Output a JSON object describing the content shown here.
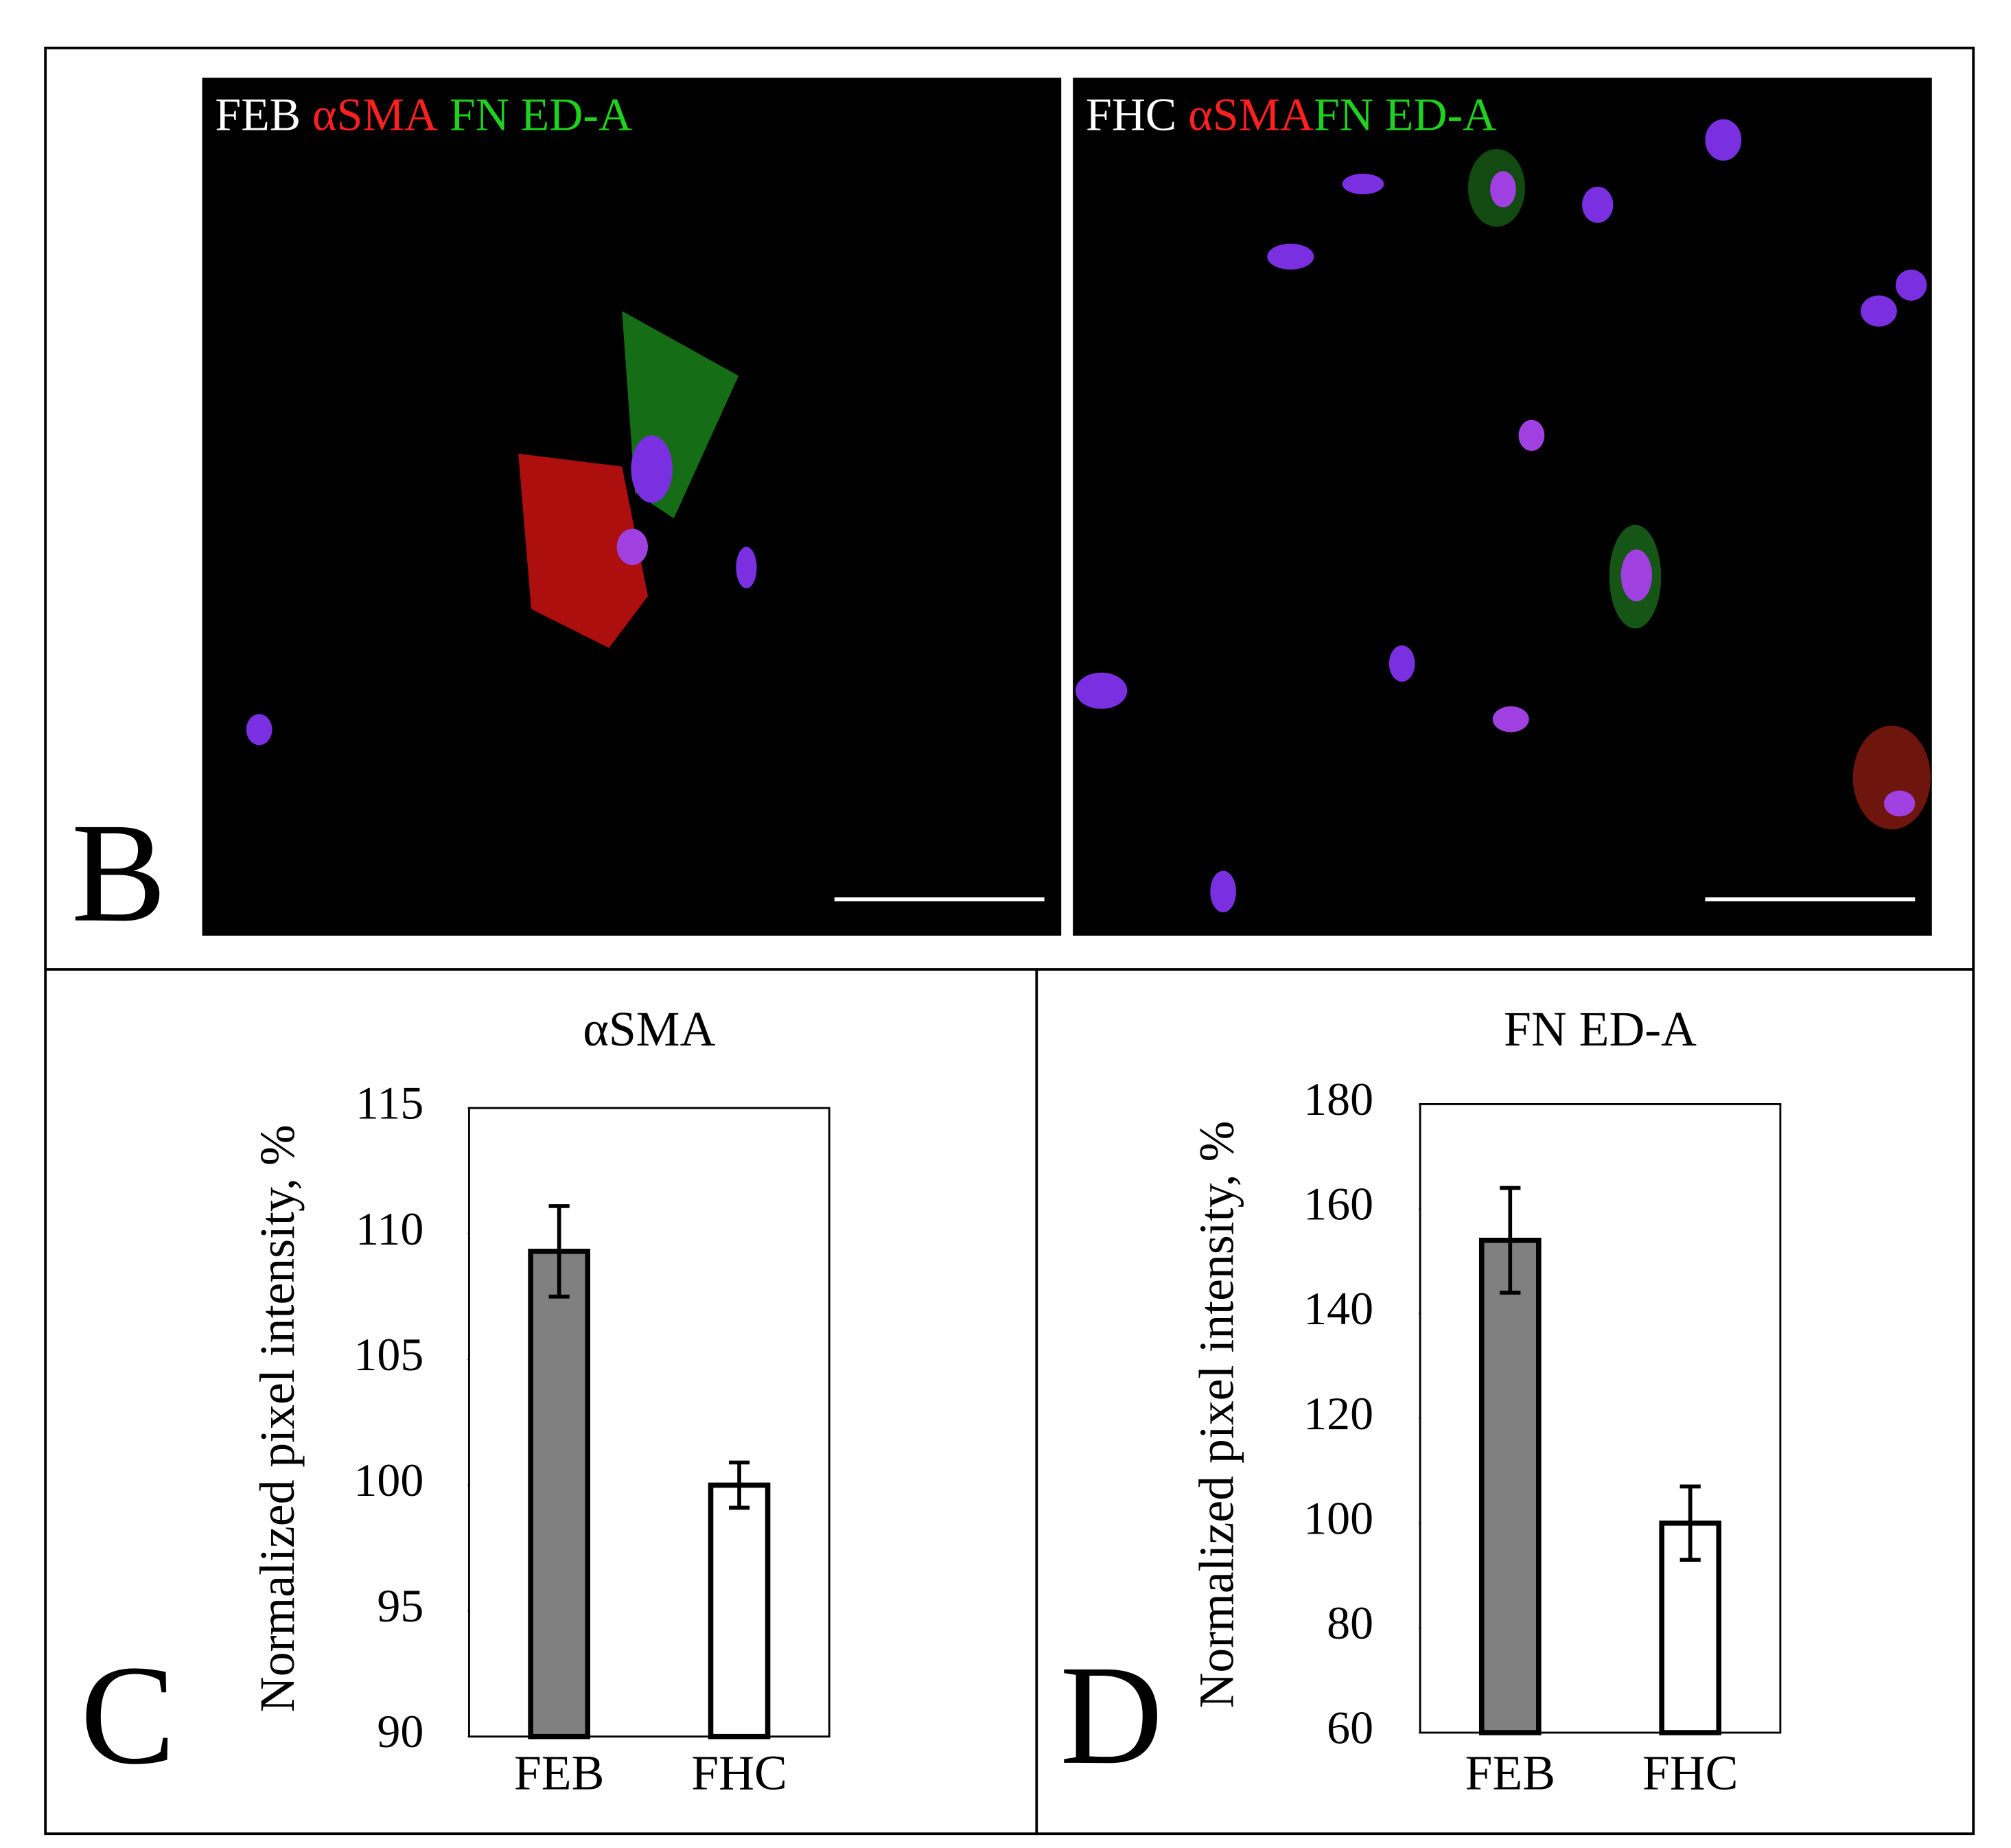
{
  "micrographs": {
    "panel_label": "B",
    "panels": [
      {
        "label": "FEB",
        "stains": [
          {
            "text": "αSMA",
            "color": "#ff2020"
          },
          {
            "text": "FN ED-A",
            "color": "#1ed21e"
          }
        ]
      },
      {
        "label": "FHC",
        "stains": [
          {
            "text": "αSMA",
            "color": "#ff2020"
          },
          {
            "text": "FN ED-A",
            "color": "#1ed21e"
          }
        ]
      }
    ]
  },
  "chart_data": [
    {
      "type": "bar",
      "panel_label": "C",
      "title": "αSMA",
      "y_label": "Normalized pixel intensity, %",
      "categories": [
        "FEB",
        "FHC"
      ],
      "values": [
        109.3,
        100
      ],
      "errors": [
        1.8,
        0.9
      ],
      "colors": [
        "#808080",
        "#ffffff"
      ],
      "ylim": [
        90,
        115
      ],
      "yticks": [
        90,
        95,
        100,
        105,
        110,
        115
      ]
    },
    {
      "type": "bar",
      "panel_label": "D",
      "title": "FN ED-A",
      "y_label": "Normalized pixel intensity, %",
      "categories": [
        "FEB",
        "FHC"
      ],
      "values": [
        154,
        100
      ],
      "errors": [
        10,
        7
      ],
      "colors": [
        "#808080",
        "#ffffff"
      ],
      "ylim": [
        60,
        180
      ],
      "yticks": [
        60,
        80,
        100,
        120,
        140,
        160,
        180
      ]
    }
  ]
}
